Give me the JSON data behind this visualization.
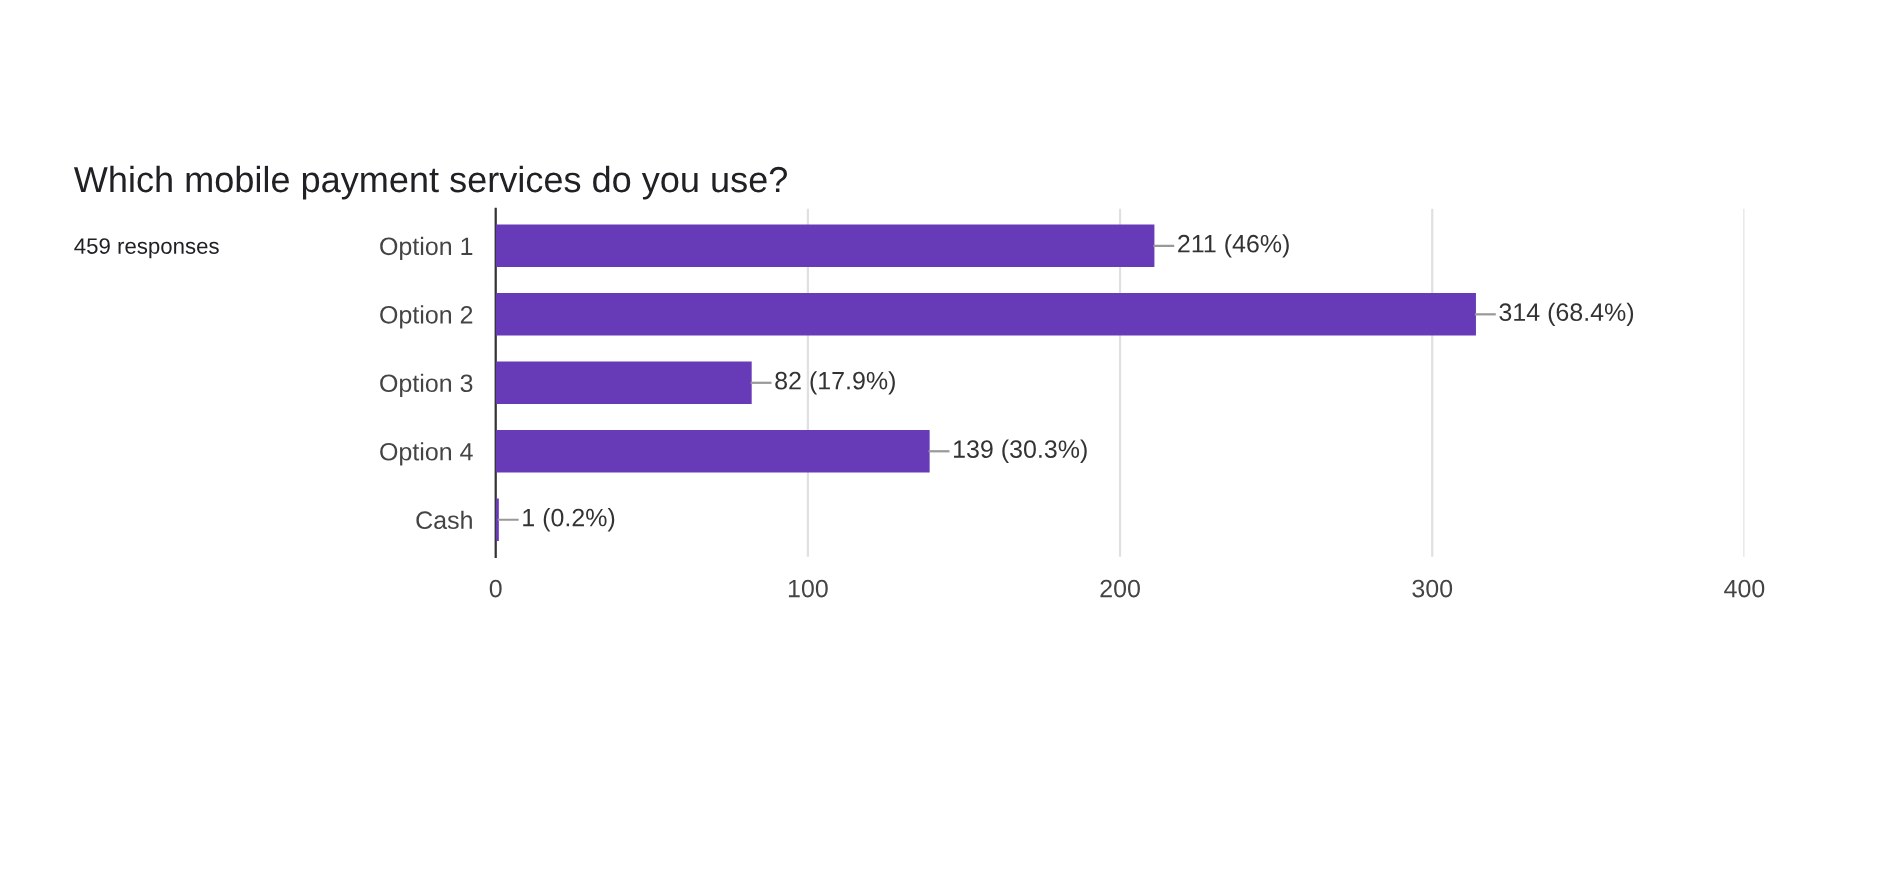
{
  "chart_data": {
    "type": "bar",
    "orientation": "horizontal",
    "title": "Which mobile payment services do you use?",
    "subtitle": "459 responses",
    "categories": [
      "Option 1",
      "Option 2",
      "Option 3",
      "Option 4",
      "Cash"
    ],
    "values": [
      211,
      314,
      82,
      139,
      1
    ],
    "color": "#673ab7",
    "value_labels": [
      "211 (46%)",
      "314 (68.4%)",
      "82 (17.9%)",
      "139 (30.3%)",
      "1 (0.2%)"
    ],
    "xlim": [
      0,
      400
    ],
    "xticks": [
      0,
      100,
      200,
      300,
      400
    ],
    "grid": "x"
  }
}
